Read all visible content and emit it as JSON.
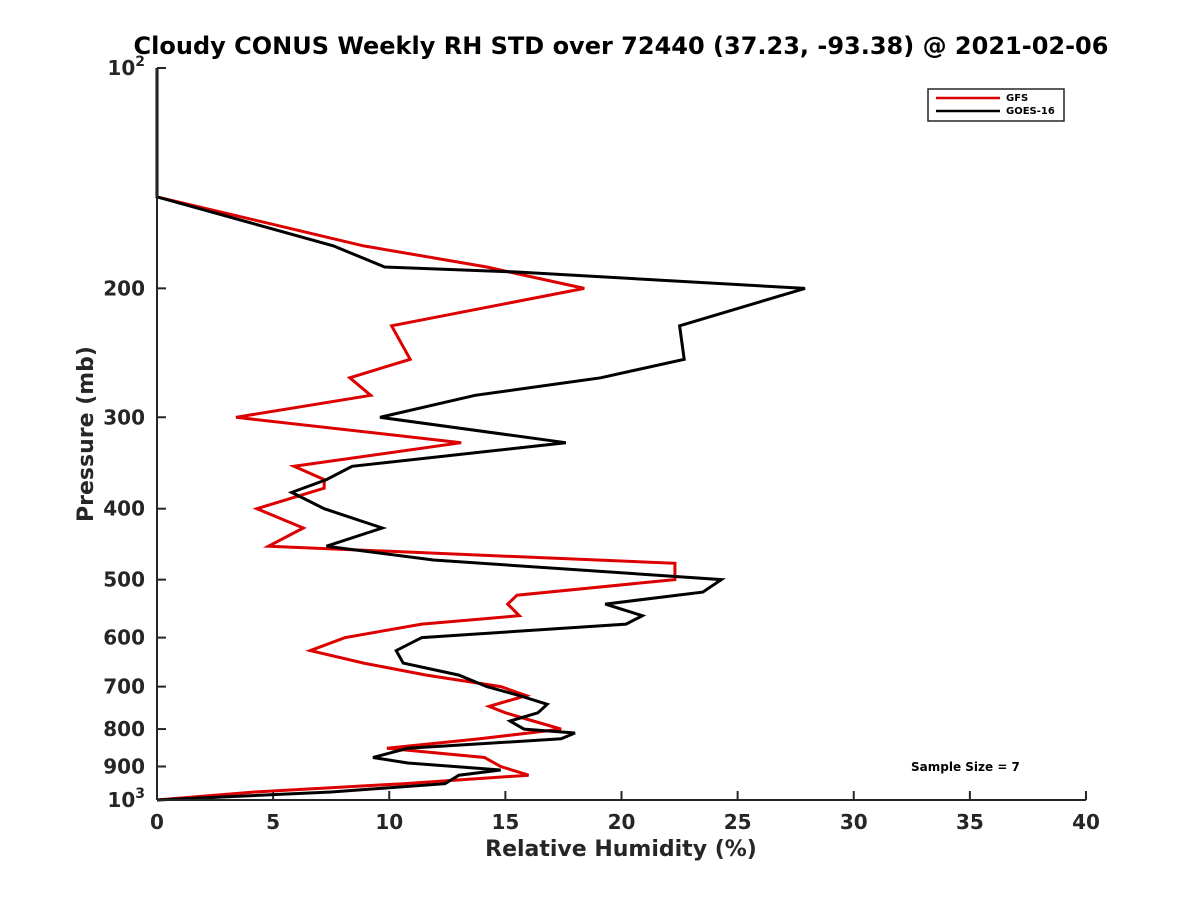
{
  "chart_data": {
    "type": "line",
    "title": "Cloudy CONUS Weekly RH STD over 72440 (37.23, -93.38) @ 2021-02-06",
    "xlabel": "Relative Humidity (%)",
    "ylabel": "Pressure (mb)",
    "xlim": [
      0,
      40
    ],
    "ylim": [
      100,
      1000
    ],
    "y_scale": "log",
    "y_reversed": true,
    "x_ticks": [
      0,
      5,
      10,
      15,
      20,
      25,
      30,
      35,
      40
    ],
    "y_ticks": [
      {
        "value": 100,
        "label": "10",
        "sup": "2"
      },
      {
        "value": 200,
        "label": "200",
        "sup": ""
      },
      {
        "value": 300,
        "label": "300",
        "sup": ""
      },
      {
        "value": 400,
        "label": "400",
        "sup": ""
      },
      {
        "value": 500,
        "label": "500",
        "sup": ""
      },
      {
        "value": 600,
        "label": "600",
        "sup": ""
      },
      {
        "value": 700,
        "label": "700",
        "sup": ""
      },
      {
        "value": 800,
        "label": "800",
        "sup": ""
      },
      {
        "value": 900,
        "label": "900",
        "sup": ""
      },
      {
        "value": 1000,
        "label": "10",
        "sup": "3"
      }
    ],
    "grid": false,
    "legend_position": "top-right",
    "annotation": "Sample Size = 7",
    "series": [
      {
        "name": "GFS",
        "color": "#dd0000",
        "points": [
          [
            0,
            100
          ],
          [
            0,
            125
          ],
          [
            0,
            150
          ],
          [
            8.9,
            175
          ],
          [
            14.2,
            187
          ],
          [
            18.4,
            200
          ],
          [
            10.1,
            225
          ],
          [
            10.9,
            250
          ],
          [
            8.3,
            265
          ],
          [
            9.2,
            280
          ],
          [
            3.4,
            300
          ],
          [
            13.1,
            325
          ],
          [
            5.9,
            350
          ],
          [
            7.2,
            365
          ],
          [
            7.2,
            375
          ],
          [
            4.3,
            400
          ],
          [
            6.3,
            425
          ],
          [
            4.8,
            450
          ],
          [
            22.3,
            475
          ],
          [
            22.3,
            500
          ],
          [
            15.5,
            525
          ],
          [
            15.1,
            540
          ],
          [
            15.6,
            560
          ],
          [
            11.4,
            575
          ],
          [
            8.1,
            600
          ],
          [
            6.6,
            625
          ],
          [
            8.9,
            650
          ],
          [
            11.6,
            675
          ],
          [
            14.8,
            700
          ],
          [
            15.9,
            720
          ],
          [
            14.3,
            745
          ],
          [
            15.0,
            760
          ],
          [
            15.9,
            775
          ],
          [
            17.4,
            800
          ],
          [
            13.9,
            825
          ],
          [
            9.9,
            850
          ],
          [
            14.1,
            875
          ],
          [
            14.8,
            900
          ],
          [
            16.0,
            925
          ],
          [
            10.6,
            950
          ],
          [
            4.2,
            975
          ],
          [
            0,
            1000
          ]
        ]
      },
      {
        "name": "GOES-16",
        "color": "#000000",
        "points": [
          [
            0,
            100
          ],
          [
            0,
            125
          ],
          [
            0,
            150
          ],
          [
            7.6,
            175
          ],
          [
            9.8,
            187
          ],
          [
            15.5,
            190
          ],
          [
            27.9,
            200
          ],
          [
            22.5,
            225
          ],
          [
            22.7,
            250
          ],
          [
            19.1,
            265
          ],
          [
            13.7,
            280
          ],
          [
            9.6,
            300
          ],
          [
            17.6,
            325
          ],
          [
            8.4,
            350
          ],
          [
            7.3,
            365
          ],
          [
            5.8,
            380
          ],
          [
            7.2,
            400
          ],
          [
            9.7,
            425
          ],
          [
            7.3,
            450
          ],
          [
            11.9,
            470
          ],
          [
            24.3,
            500
          ],
          [
            23.5,
            520
          ],
          [
            19.3,
            540
          ],
          [
            20.9,
            560
          ],
          [
            20.2,
            575
          ],
          [
            11.4,
            600
          ],
          [
            10.3,
            625
          ],
          [
            10.6,
            650
          ],
          [
            13.0,
            675
          ],
          [
            14.2,
            700
          ],
          [
            15.6,
            720
          ],
          [
            16.8,
            740
          ],
          [
            16.4,
            760
          ],
          [
            15.2,
            780
          ],
          [
            15.8,
            800
          ],
          [
            18.0,
            810
          ],
          [
            17.4,
            825
          ],
          [
            10.8,
            850
          ],
          [
            9.3,
            875
          ],
          [
            10.8,
            890
          ],
          [
            14.8,
            910
          ],
          [
            13.0,
            925
          ],
          [
            12.4,
            950
          ],
          [
            7.5,
            975
          ],
          [
            0,
            1000
          ]
        ]
      }
    ]
  }
}
